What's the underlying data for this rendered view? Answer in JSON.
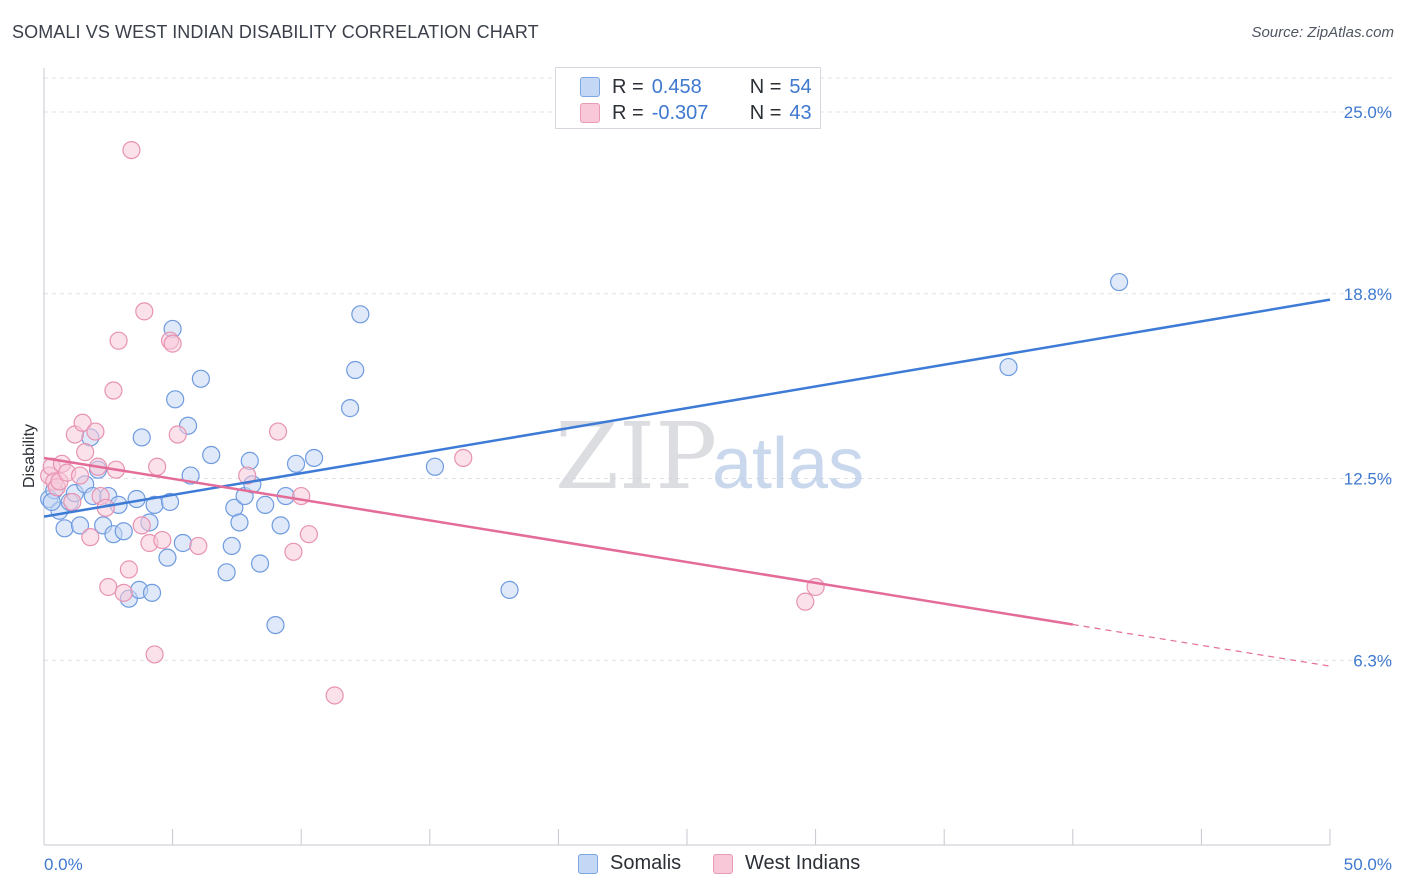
{
  "title": "SOMALI VS WEST INDIAN DISABILITY CORRELATION CHART",
  "source": "Source: ZipAtlas.com",
  "colors": {
    "blue": "#3d7bd6",
    "blue_fill": "#c4d7f4",
    "pink": "#e46c98",
    "pink_fill": "#f8c8d8",
    "tick_label": "#3f78cf",
    "grid": "#dde1e6"
  },
  "legend": {
    "rows": [
      {
        "r_label": "R =",
        "r_value": "0.458",
        "n_label": "N =",
        "n_value": "54"
      },
      {
        "r_label": "R =",
        "r_value": "-0.307",
        "n_label": "N =",
        "n_value": "43"
      }
    ]
  },
  "bottom_legend": {
    "items": [
      {
        "label": "Somalis"
      },
      {
        "label": "West Indians"
      }
    ]
  },
  "chart_data": {
    "type": "scatter",
    "title": "SOMALI VS WEST INDIAN DISABILITY CORRELATION CHART",
    "xlabel": "",
    "ylabel": "Disability",
    "xlim": [
      0,
      50
    ],
    "ylim": [
      0,
      26.5
    ],
    "x_tick_labels": [
      {
        "value": 0,
        "label": "0.0%"
      },
      {
        "value": 50,
        "label": "50.0%"
      }
    ],
    "y_tick_labels": [
      {
        "value": 6.3,
        "label": "6.3%"
      },
      {
        "value": 12.5,
        "label": "12.5%"
      },
      {
        "value": 18.8,
        "label": "18.8%"
      },
      {
        "value": 25.0,
        "label": "25.0%"
      }
    ],
    "grid": true,
    "legend_position": "top-center",
    "series": [
      {
        "name": "Somalis",
        "color": "#3d7bd6",
        "trend": {
          "x": [
            0,
            50
          ],
          "y": [
            11.2,
            18.6
          ],
          "dashed_from_x": null
        },
        "points": [
          [
            0.2,
            11.8
          ],
          [
            0.4,
            12.1
          ],
          [
            0.6,
            11.4
          ],
          [
            0.8,
            10.8
          ],
          [
            1.0,
            11.7
          ],
          [
            1.2,
            12.0
          ],
          [
            1.4,
            10.9
          ],
          [
            1.6,
            12.3
          ],
          [
            1.8,
            13.9
          ],
          [
            1.9,
            11.9
          ],
          [
            2.1,
            12.8
          ],
          [
            2.3,
            10.9
          ],
          [
            2.5,
            11.9
          ],
          [
            2.7,
            10.6
          ],
          [
            2.9,
            11.6
          ],
          [
            3.1,
            10.7
          ],
          [
            3.3,
            8.4
          ],
          [
            3.6,
            11.8
          ],
          [
            3.7,
            8.7
          ],
          [
            3.8,
            13.9
          ],
          [
            4.1,
            11.0
          ],
          [
            4.2,
            8.6
          ],
          [
            4.3,
            11.6
          ],
          [
            4.8,
            9.8
          ],
          [
            4.9,
            11.7
          ],
          [
            5.0,
            17.6
          ],
          [
            5.1,
            15.2
          ],
          [
            5.4,
            10.3
          ],
          [
            5.6,
            14.3
          ],
          [
            5.7,
            12.6
          ],
          [
            6.1,
            15.9
          ],
          [
            6.5,
            13.3
          ],
          [
            7.1,
            9.3
          ],
          [
            7.3,
            10.2
          ],
          [
            7.4,
            11.5
          ],
          [
            7.6,
            11.0
          ],
          [
            7.8,
            11.9
          ],
          [
            8.0,
            13.1
          ],
          [
            8.1,
            12.3
          ],
          [
            8.4,
            9.6
          ],
          [
            8.6,
            11.6
          ],
          [
            9.0,
            7.5
          ],
          [
            9.2,
            10.9
          ],
          [
            9.4,
            11.9
          ],
          [
            9.8,
            13.0
          ],
          [
            10.5,
            13.2
          ],
          [
            11.9,
            14.9
          ],
          [
            12.1,
            16.2
          ],
          [
            12.3,
            18.1
          ],
          [
            15.2,
            12.9
          ],
          [
            18.1,
            8.7
          ],
          [
            37.5,
            16.3
          ],
          [
            41.8,
            19.2
          ],
          [
            0.3,
            11.7
          ]
        ]
      },
      {
        "name": "West Indians",
        "color": "#e46c98",
        "trend": {
          "x": [
            0,
            50
          ],
          "y": [
            13.2,
            6.1
          ],
          "dashed_from_x": 40
        },
        "points": [
          [
            0.2,
            12.6
          ],
          [
            0.3,
            12.9
          ],
          [
            0.4,
            12.4
          ],
          [
            0.5,
            12.2
          ],
          [
            0.6,
            12.4
          ],
          [
            0.7,
            13.0
          ],
          [
            0.9,
            12.7
          ],
          [
            1.1,
            11.7
          ],
          [
            1.2,
            14.0
          ],
          [
            1.4,
            12.6
          ],
          [
            1.5,
            14.4
          ],
          [
            1.6,
            13.4
          ],
          [
            1.8,
            10.5
          ],
          [
            2.0,
            14.1
          ],
          [
            2.1,
            12.9
          ],
          [
            2.2,
            11.9
          ],
          [
            2.4,
            11.5
          ],
          [
            2.5,
            8.8
          ],
          [
            2.7,
            15.5
          ],
          [
            2.8,
            12.8
          ],
          [
            2.9,
            17.2
          ],
          [
            3.1,
            8.6
          ],
          [
            3.3,
            9.4
          ],
          [
            3.4,
            23.7
          ],
          [
            3.8,
            10.9
          ],
          [
            3.9,
            18.2
          ],
          [
            4.1,
            10.3
          ],
          [
            4.3,
            6.5
          ],
          [
            4.4,
            12.9
          ],
          [
            4.6,
            10.4
          ],
          [
            4.9,
            17.2
          ],
          [
            5.0,
            17.1
          ],
          [
            5.2,
            14.0
          ],
          [
            6.0,
            10.2
          ],
          [
            7.9,
            12.6
          ],
          [
            9.1,
            14.1
          ],
          [
            9.7,
            10.0
          ],
          [
            10.0,
            11.9
          ],
          [
            10.3,
            10.6
          ],
          [
            11.3,
            5.1
          ],
          [
            16.3,
            13.2
          ],
          [
            29.6,
            8.3
          ],
          [
            30.0,
            8.8
          ]
        ]
      }
    ]
  }
}
